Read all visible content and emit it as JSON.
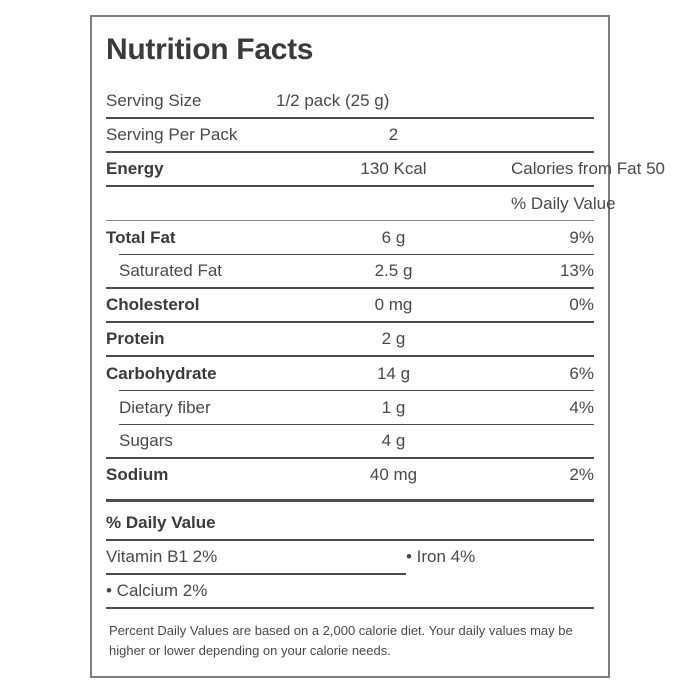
{
  "title": "Nutrition Facts",
  "rows": [
    {
      "label": "Serving Size",
      "amount": "1/2 pack (25 g)",
      "pct": ""
    },
    {
      "label": "Serving Per Pack",
      "amount": "2",
      "pct": ""
    },
    {
      "label": "Energy",
      "amount": "130 Kcal",
      "pct": "Calories from Fat 50"
    },
    {
      "label": "",
      "amount": "",
      "pct": "% Daily Value"
    },
    {
      "label": "Total Fat",
      "amount": "6 g",
      "pct": "9%"
    },
    {
      "label": "Saturated Fat",
      "amount": "2.5 g",
      "pct": "13%"
    },
    {
      "label": "Cholesterol",
      "amount": "0 mg",
      "pct": "0%"
    },
    {
      "label": "Protein",
      "amount": "2 g",
      "pct": ""
    },
    {
      "label": "Carbohydrate",
      "amount": "14 g",
      "pct": "6%"
    },
    {
      "label": "Dietary fiber",
      "amount": "1 g",
      "pct": "4%"
    },
    {
      "label": "Sugars",
      "amount": "4 g",
      "pct": ""
    },
    {
      "label": "Sodium",
      "amount": "40 mg",
      "pct": "2%"
    }
  ],
  "daily_value_section": {
    "header": "% Daily Value",
    "vitamin_b1": "Vitamin B1 2%",
    "iron": "• Iron 4%",
    "calcium": "• Calcium 2%"
  },
  "footnote": "Percent Daily Values are based on a 2,000 calorie diet. Your daily values may be higher or lower depending on your calorie needs.",
  "colors": {
    "text-strong": "#3b3b3b",
    "text": "#4a4a4a",
    "line-dark": "#4d4d4d",
    "line-mid": "#8a8a8a",
    "box-border": "#7e7e7e"
  }
}
